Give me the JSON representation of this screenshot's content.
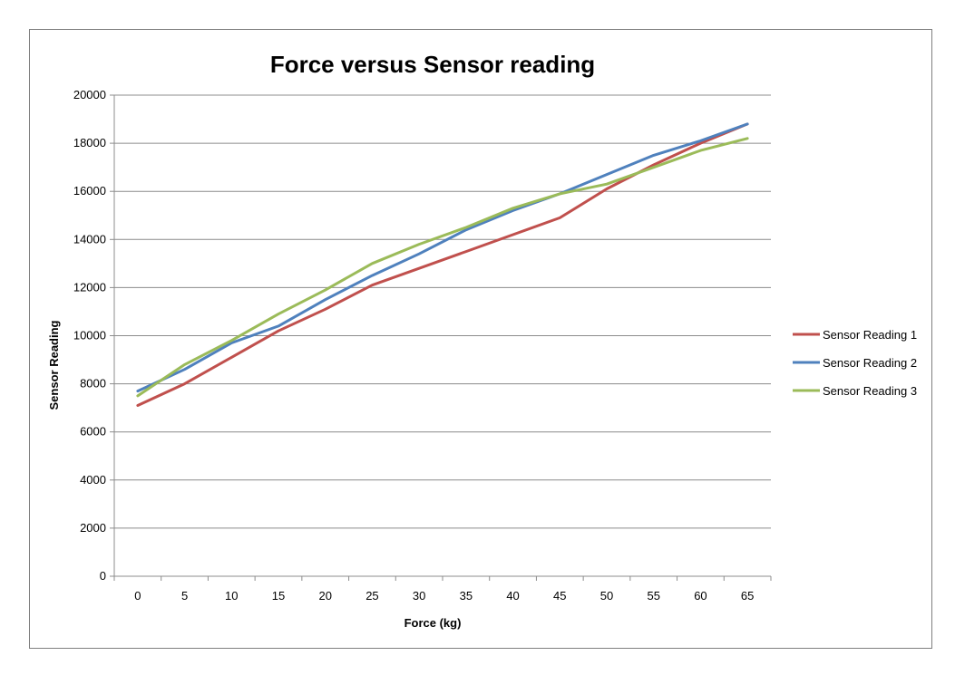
{
  "chart_data": {
    "type": "line",
    "title": "Force versus Sensor reading",
    "xlabel": "Force (kg)",
    "ylabel": "Sensor Reading",
    "categories": [
      "0",
      "5",
      "10",
      "15",
      "20",
      "25",
      "30",
      "35",
      "40",
      "45",
      "50",
      "55",
      "60",
      "65"
    ],
    "ylim": [
      0,
      20000
    ],
    "yticks": [
      "0",
      "2000",
      "4000",
      "6000",
      "8000",
      "10000",
      "12000",
      "14000",
      "16000",
      "18000",
      "20000"
    ],
    "grid": true,
    "legend_position": "right",
    "series": [
      {
        "name": "Sensor Reading 1",
        "color": "#c0504d",
        "values": [
          7100,
          8000,
          9100,
          10200,
          11100,
          12100,
          12800,
          13500,
          14200,
          14900,
          16100,
          17100,
          18000,
          18800
        ]
      },
      {
        "name": "Sensor Reading 2",
        "color": "#4f81bd",
        "values": [
          7700,
          8600,
          9700,
          10400,
          11500,
          12500,
          13400,
          14400,
          15200,
          15900,
          16700,
          17500,
          18100,
          18800
        ]
      },
      {
        "name": "Sensor Reading 3",
        "color": "#9bbb59",
        "values": [
          7500,
          8800,
          9800,
          10900,
          11900,
          13000,
          13800,
          14500,
          15300,
          15900,
          16300,
          17000,
          17700,
          18200
        ]
      }
    ]
  }
}
